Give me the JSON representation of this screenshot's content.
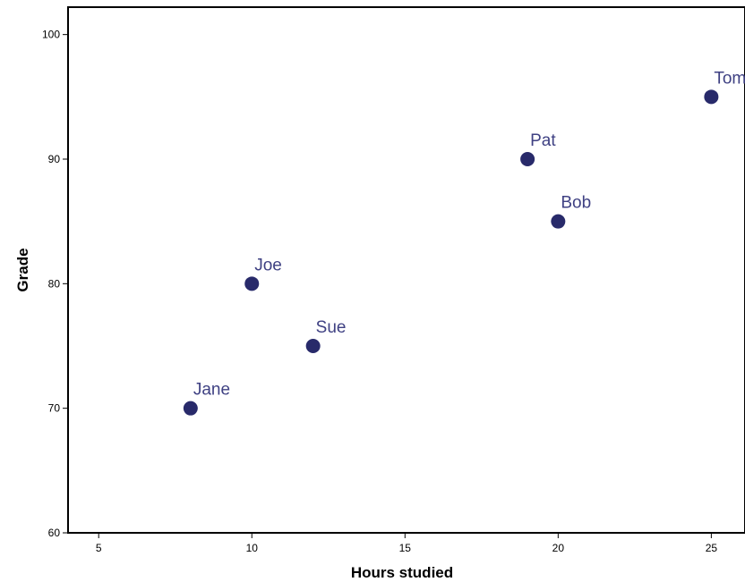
{
  "chart_data": {
    "type": "scatter",
    "title": "",
    "xlabel": "Hours studied",
    "ylabel": "Grade",
    "xlim": [
      4,
      26.1
    ],
    "ylim": [
      60,
      102.2
    ],
    "x_ticks": [
      5,
      10,
      15,
      20,
      25
    ],
    "y_ticks": [
      60,
      70,
      80,
      90,
      100
    ],
    "grid": false,
    "legend": "none",
    "marker_color": "#282a6a",
    "label_color": "#3f4183",
    "points": [
      {
        "label": "Jane",
        "x": 8,
        "y": 70
      },
      {
        "label": "Joe",
        "x": 10,
        "y": 80
      },
      {
        "label": "Sue",
        "x": 12,
        "y": 75
      },
      {
        "label": "Pat",
        "x": 19,
        "y": 90
      },
      {
        "label": "Bob",
        "x": 20,
        "y": 85
      },
      {
        "label": "Tom",
        "x": 25,
        "y": 95
      }
    ]
  }
}
